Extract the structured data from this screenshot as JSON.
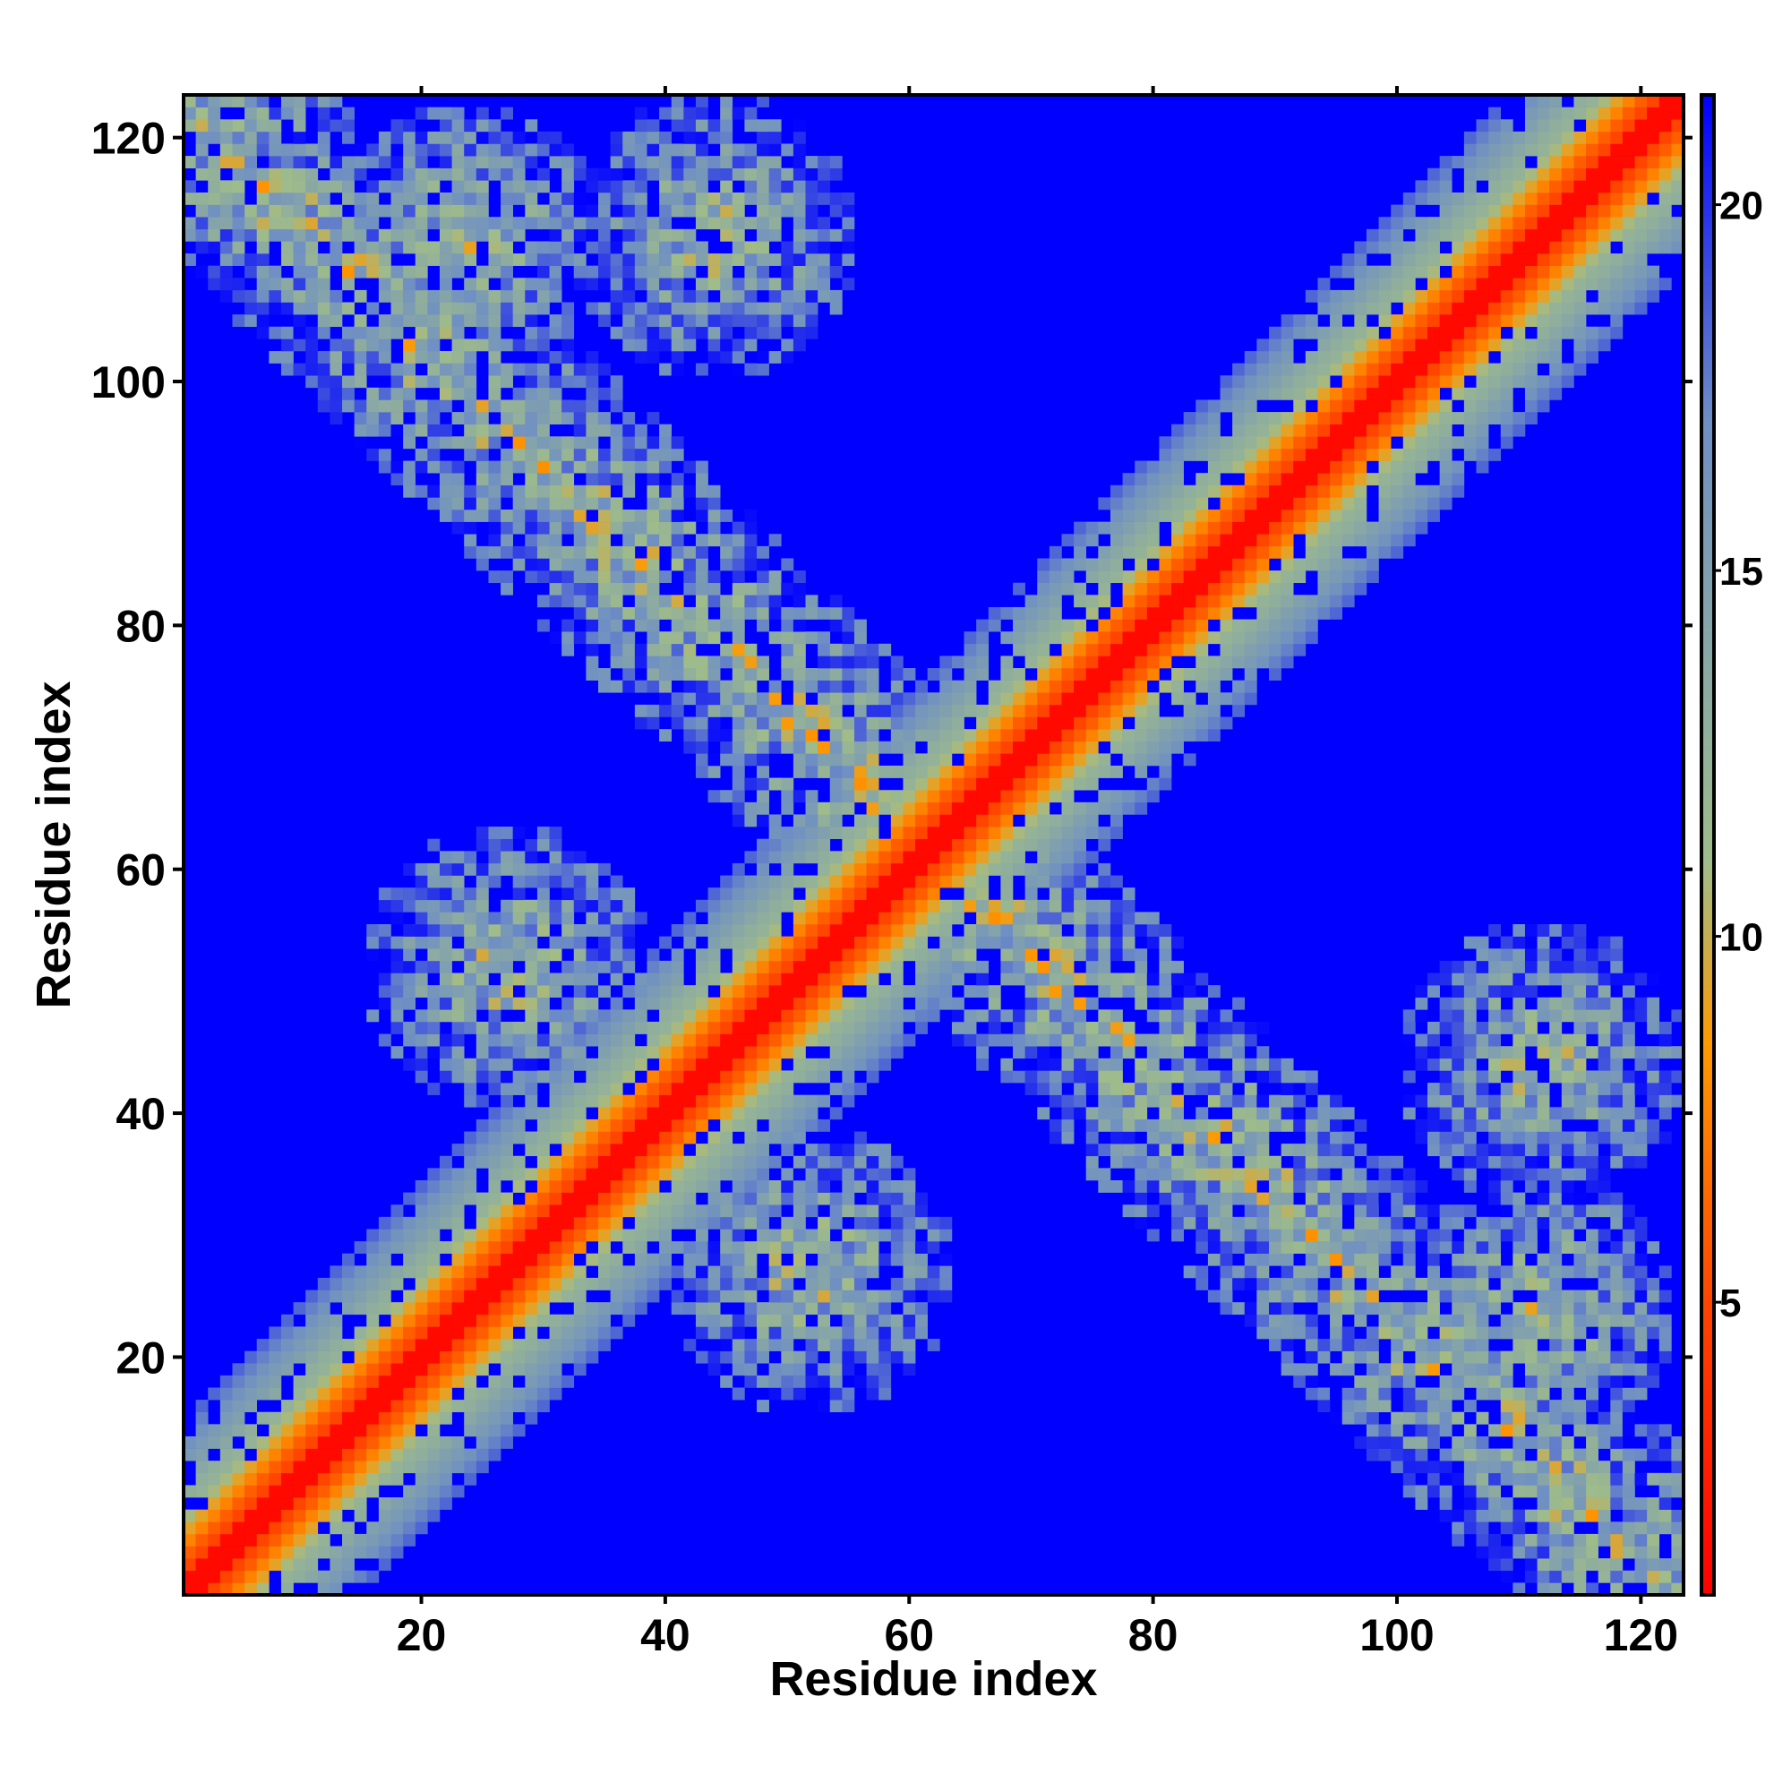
{
  "chart_data": {
    "type": "heatmap",
    "title": "",
    "xlabel": "Residue index",
    "ylabel": "Residue index",
    "n_residues": 123,
    "xlim": [
      1,
      123
    ],
    "ylim": [
      1,
      123
    ],
    "x_ticks": [
      20,
      40,
      60,
      80,
      100,
      120
    ],
    "y_ticks": [
      20,
      40,
      60,
      80,
      100,
      120
    ],
    "colorbar": {
      "range": [
        1,
        21.5
      ],
      "ticks": [
        5,
        10,
        15,
        20
      ],
      "stops": [
        {
          "value": 1,
          "color": "#ff0000"
        },
        {
          "value": 5,
          "color": "#ff4500"
        },
        {
          "value": 8.5,
          "color": "#ff9900"
        },
        {
          "value": 11,
          "color": "#9fbc8a"
        },
        {
          "value": 17,
          "color": "#6f8fc4"
        },
        {
          "value": 21.5,
          "color": "#0000ff"
        }
      ]
    },
    "background_color": "#0000ff",
    "description_of_values": "pairwise distance matrix (symmetric); low values along diagonal",
    "band_features": [
      {
        "kind": "diagonal",
        "half_width": 18
      },
      {
        "kind": "anti_diagonal_band",
        "from": [
          1,
          120
        ],
        "to": [
          123,
          1
        ],
        "typical_value": 14
      }
    ]
  }
}
